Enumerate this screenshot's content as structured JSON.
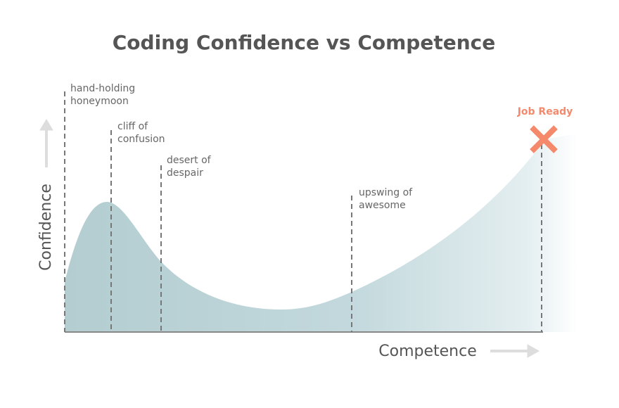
{
  "title": "Coding Confidence vs Competence",
  "y_axis_label": "Confidence",
  "x_axis_label": "Competence",
  "goal_label": "Job Ready",
  "phases": [
    {
      "lines": [
        "hand-holding",
        "honeymoon"
      ]
    },
    {
      "lines": [
        "cliff of",
        "confusion"
      ]
    },
    {
      "lines": [
        "desert of",
        "despair"
      ]
    },
    {
      "lines": [
        "upswing of",
        "awesome"
      ]
    }
  ]
}
